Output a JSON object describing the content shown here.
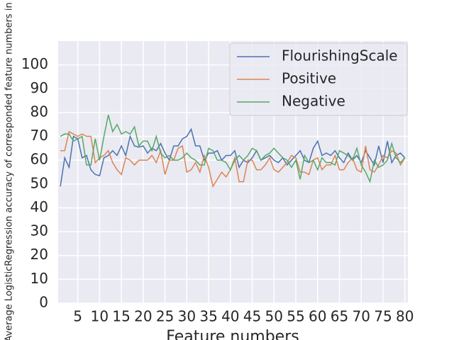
{
  "chart_data": {
    "type": "line",
    "y_label": "Average LogisticRegression accuracy of corresponded feature numbers in",
    "x_label": "Feature numbers",
    "x": [
      1,
      2,
      3,
      4,
      5,
      6,
      7,
      8,
      9,
      10,
      11,
      12,
      13,
      14,
      15,
      16,
      17,
      18,
      19,
      20,
      21,
      22,
      23,
      24,
      25,
      26,
      27,
      28,
      29,
      30,
      31,
      32,
      33,
      34,
      35,
      36,
      37,
      38,
      39,
      40,
      41,
      42,
      43,
      44,
      45,
      46,
      47,
      48,
      49,
      50,
      51,
      52,
      53,
      54,
      55,
      56,
      57,
      58,
      59,
      60,
      61,
      62,
      63,
      64,
      65,
      66,
      67,
      68,
      69,
      70,
      71,
      72,
      73,
      74,
      75,
      76,
      77,
      78,
      79,
      80
    ],
    "series": [
      {
        "name": "FlourishingScale",
        "color": "#4c72b0",
        "values": [
          49,
          61,
          57,
          70,
          69,
          61,
          62,
          56,
          54,
          53.5,
          61,
          62,
          64,
          62,
          66,
          62,
          70,
          66,
          65.5,
          66,
          63,
          65,
          64,
          67,
          63,
          60,
          66,
          66,
          69,
          70,
          73,
          66,
          66,
          60,
          63,
          63,
          64,
          60,
          62,
          62,
          64,
          57,
          60,
          59,
          61,
          64,
          60,
          61,
          62,
          60,
          59,
          61,
          58,
          60,
          62,
          64,
          60,
          59,
          65,
          68,
          62,
          63,
          62,
          64,
          61,
          59,
          63,
          60,
          62,
          59,
          64,
          61,
          58,
          66,
          59,
          68,
          59,
          62,
          63,
          61
        ]
      },
      {
        "name": "Positive",
        "color": "#dd8452",
        "values": [
          64,
          64,
          72,
          71,
          70,
          71,
          70,
          70,
          59,
          61,
          62,
          64,
          59,
          56,
          54,
          61,
          60,
          58,
          60,
          60,
          60,
          62,
          59,
          64,
          54,
          60,
          60,
          65,
          66,
          55,
          56,
          59,
          55,
          62,
          57,
          49,
          52,
          55,
          53,
          56,
          61,
          51,
          51,
          60,
          60,
          56,
          56,
          58,
          61,
          56,
          55,
          57,
          59,
          62,
          61,
          55,
          55,
          54,
          60,
          61,
          56,
          58,
          58,
          62,
          56,
          56,
          59,
          61,
          56,
          55,
          66,
          56,
          55,
          58,
          62,
          61,
          64,
          63,
          58,
          61
        ]
      },
      {
        "name": "Negative",
        "color": "#55a868",
        "values": [
          70,
          71,
          71,
          68,
          69,
          70,
          58,
          58,
          69,
          60,
          70,
          79,
          72,
          75,
          71,
          72,
          71,
          74,
          66,
          68,
          68,
          64,
          70,
          63,
          61,
          62,
          60,
          60,
          61,
          63,
          61,
          60,
          58,
          58,
          65,
          64,
          60,
          60,
          59,
          56,
          60,
          62,
          60,
          62,
          65,
          64,
          60,
          62,
          63,
          65,
          63,
          61,
          60,
          57,
          60,
          52,
          62,
          59,
          60,
          56,
          61,
          59,
          59,
          58,
          64,
          63,
          62,
          60,
          65,
          58,
          55,
          51,
          60,
          57,
          58,
          60,
          67,
          61,
          59,
          61
        ]
      }
    ],
    "xlim": [
      0.5,
      80.7
    ],
    "ylim": [
      0,
      110
    ],
    "xticks": [
      5,
      10,
      15,
      20,
      25,
      30,
      35,
      40,
      45,
      50,
      55,
      60,
      65,
      70,
      75,
      80
    ],
    "yticks": [
      0,
      10,
      20,
      30,
      40,
      50,
      60,
      70,
      80,
      90,
      100
    ],
    "grid": true,
    "legend": "upper right"
  }
}
